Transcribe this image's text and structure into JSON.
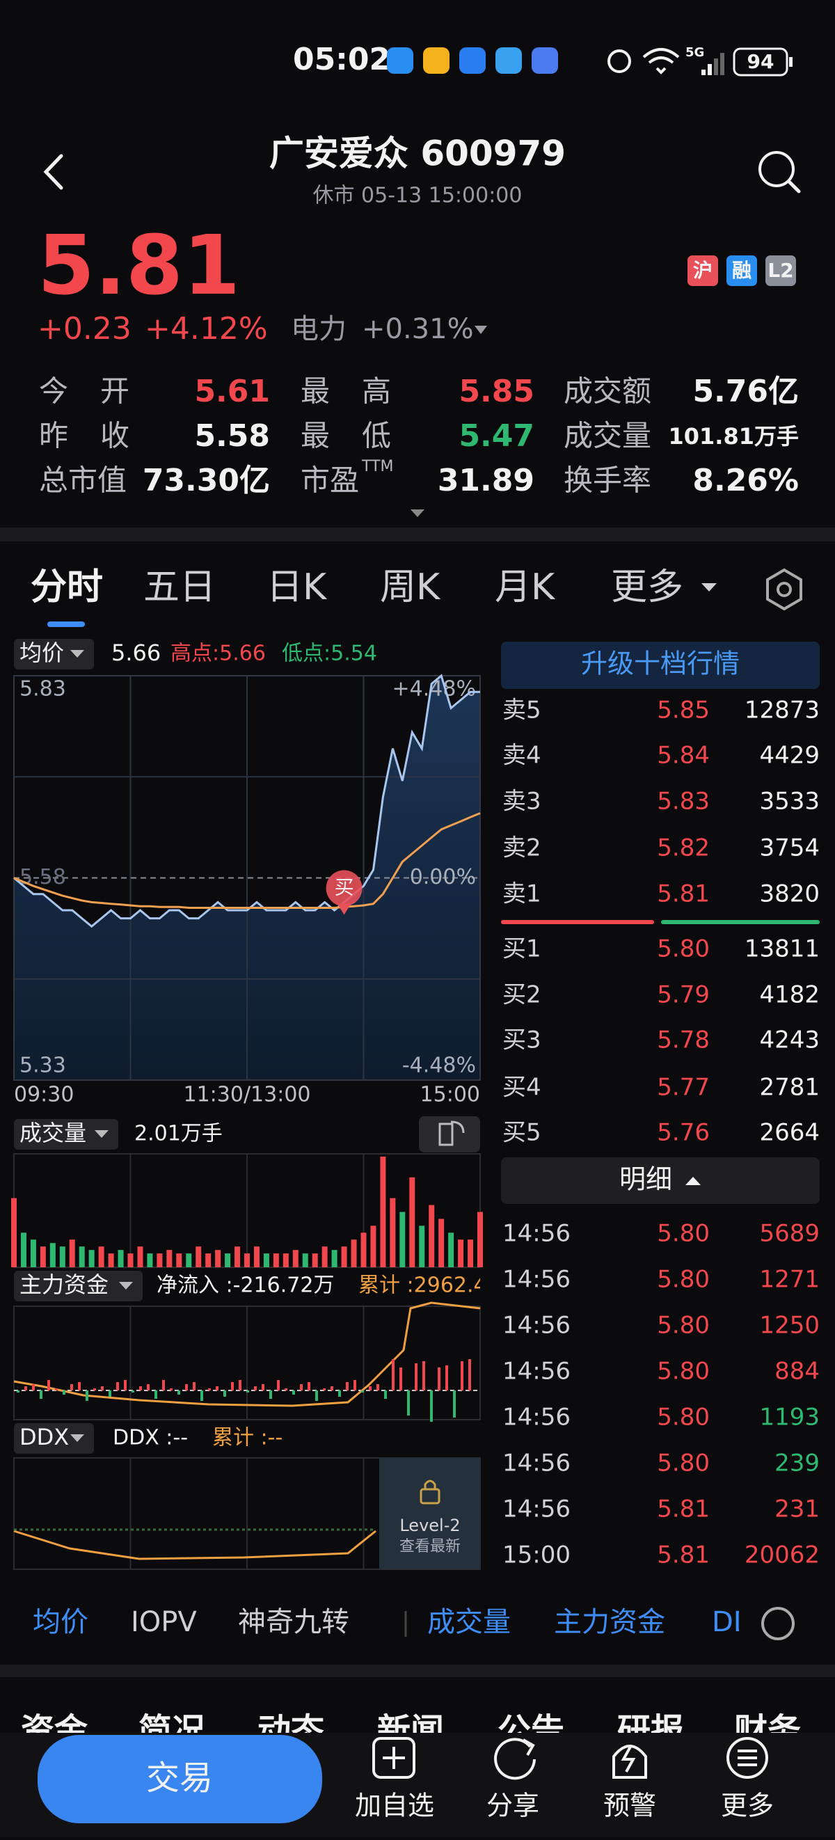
{
  "status_bar": {
    "time": "05:02",
    "network": "5G",
    "battery": "94"
  },
  "header": {
    "title": "广安爱众 600979",
    "subtitle": "休市 05-13 15:00:00"
  },
  "quote": {
    "price": "5.81",
    "change": "+0.23",
    "change_pct": "+4.12%",
    "sector": "电力",
    "sector_pct": "+0.31%",
    "badges": [
      "沪",
      "融",
      "L2"
    ]
  },
  "stats": [
    [
      {
        "label": "今开",
        "value": "5.61"
      },
      {
        "label": "最高",
        "value": "5.85"
      },
      {
        "label": "成交额",
        "value": "5.76亿"
      }
    ],
    [
      {
        "label": "昨收",
        "value": "5.58"
      },
      {
        "label": "最低",
        "value": "5.47"
      },
      {
        "label": "成交量",
        "value": "101.81万手"
      }
    ],
    [
      {
        "label": "总市值",
        "value": "73.30亿"
      },
      {
        "label": "市盈",
        "sup": "TTM",
        "value": "31.89"
      },
      {
        "label": "换手率",
        "value": "8.26%"
      }
    ]
  ],
  "tabs": [
    "分时",
    "五日",
    "日K",
    "周K",
    "月K",
    "更多"
  ],
  "chart_data": {
    "type": "line",
    "header": {
      "label": "均价",
      "value": "5.66",
      "high": "高点:5.66",
      "low": "低点:5.54"
    },
    "x_labels": [
      "09:30",
      "11:30/13:00",
      "15:00"
    ],
    "ylim": [
      5.33,
      5.83
    ],
    "yticks": [
      5.33,
      5.58,
      5.83
    ],
    "y2lim": [
      -4.48,
      4.48
    ],
    "y2ticks": [
      {
        "value": -4.48,
        "label": "-4.48%"
      },
      {
        "value": 0,
        "label": "0.00%"
      },
      {
        "value": 4.48,
        "label": "+4.48%"
      }
    ],
    "marker": "买",
    "series": [
      {
        "name": "价格",
        "color": "#a8c6ee",
        "values": [
          5.58,
          5.57,
          5.56,
          5.56,
          5.55,
          5.54,
          5.54,
          5.53,
          5.52,
          5.53,
          5.54,
          5.53,
          5.53,
          5.54,
          5.53,
          5.53,
          5.54,
          5.54,
          5.53,
          5.53,
          5.54,
          5.55,
          5.54,
          5.54,
          5.54,
          5.55,
          5.54,
          5.54,
          5.54,
          5.55,
          5.54,
          5.54,
          5.55,
          5.54,
          5.55,
          5.56,
          5.57,
          5.59,
          5.68,
          5.74,
          5.7,
          5.76,
          5.74,
          5.82,
          5.83,
          5.79,
          5.8,
          5.81,
          5.81
        ]
      },
      {
        "name": "均价",
        "color": "#f0a050",
        "values": [
          5.58,
          5.575,
          5.57,
          5.566,
          5.562,
          5.558,
          5.555,
          5.552,
          5.55,
          5.549,
          5.548,
          5.547,
          5.546,
          5.545,
          5.545,
          5.544,
          5.544,
          5.544,
          5.543,
          5.543,
          5.543,
          5.543,
          5.543,
          5.543,
          5.543,
          5.543,
          5.543,
          5.543,
          5.543,
          5.543,
          5.543,
          5.543,
          5.543,
          5.543,
          5.544,
          5.545,
          5.546,
          5.548,
          5.56,
          5.58,
          5.6,
          5.61,
          5.62,
          5.63,
          5.64,
          5.645,
          5.65,
          5.655,
          5.66
        ]
      }
    ],
    "volume": {
      "label": "成交量",
      "value": "2.01万手",
      "values": [
        1.0,
        0.5,
        0.4,
        0.3,
        0.35,
        0.3,
        0.4,
        0.3,
        0.25,
        0.3,
        0.2,
        0.25,
        0.2,
        0.3,
        0.2,
        0.2,
        0.25,
        0.2,
        0.2,
        0.3,
        0.2,
        0.25,
        0.2,
        0.3,
        0.2,
        0.3,
        0.2,
        0.2,
        0.2,
        0.25,
        0.2,
        0.2,
        0.3,
        0.25,
        0.3,
        0.4,
        0.5,
        0.6,
        1.6,
        1.0,
        0.8,
        1.3,
        0.6,
        0.9,
        0.7,
        0.5,
        0.4,
        0.4,
        0.8
      ]
    },
    "fund": {
      "label": "主力资金",
      "net": "净流入 :-216.72万",
      "cum": "累计 :2962.4"
    },
    "ddx": {
      "label": "DDX",
      "value": "DDX :--",
      "cum": "累计 :--",
      "lock_title": "Level-2",
      "lock_text": "查看最新"
    }
  },
  "order_book": {
    "button": "升级十档行情",
    "asks": [
      {
        "label": "卖5",
        "price": "5.85",
        "volume": "12873"
      },
      {
        "label": "卖4",
        "price": "5.84",
        "volume": "4429"
      },
      {
        "label": "卖3",
        "price": "5.83",
        "volume": "3533"
      },
      {
        "label": "卖2",
        "price": "5.82",
        "volume": "3754"
      },
      {
        "label": "卖1",
        "price": "5.81",
        "volume": "3820"
      }
    ],
    "bids": [
      {
        "label": "买1",
        "price": "5.80",
        "volume": "13811"
      },
      {
        "label": "买2",
        "price": "5.79",
        "volume": "4182"
      },
      {
        "label": "买3",
        "price": "5.78",
        "volume": "4243"
      },
      {
        "label": "买4",
        "price": "5.77",
        "volume": "2781"
      },
      {
        "label": "买5",
        "price": "5.76",
        "volume": "2664"
      }
    ]
  },
  "detail": {
    "button": "明细",
    "rows": [
      {
        "time": "14:56",
        "price": "5.80",
        "volume": "5689",
        "color": "#f2474c"
      },
      {
        "time": "14:56",
        "price": "5.80",
        "volume": "1271",
        "color": "#f2474c"
      },
      {
        "time": "14:56",
        "price": "5.80",
        "volume": "1250",
        "color": "#f2474c"
      },
      {
        "time": "14:56",
        "price": "5.80",
        "volume": "884",
        "color": "#f2474c"
      },
      {
        "time": "14:56",
        "price": "5.80",
        "volume": "1193",
        "color": "#2eb872"
      },
      {
        "time": "14:56",
        "price": "5.80",
        "volume": "239",
        "color": "#2eb872"
      },
      {
        "time": "14:56",
        "price": "5.81",
        "volume": "231",
        "color": "#f2474c"
      },
      {
        "time": "15:00",
        "price": "5.81",
        "volume": "20062",
        "color": "#f2474c"
      }
    ]
  },
  "indicator_tabs": [
    "均价",
    "IOPV",
    "神奇九转",
    "成交量",
    "主力资金",
    "DDX"
  ],
  "info_tabs": [
    "资金",
    "简况",
    "动态",
    "新闻",
    "公告",
    "研报",
    "财务"
  ],
  "bottom_bar": {
    "trade": "交易",
    "actions": [
      "加自选",
      "分享",
      "预警",
      "更多"
    ]
  }
}
